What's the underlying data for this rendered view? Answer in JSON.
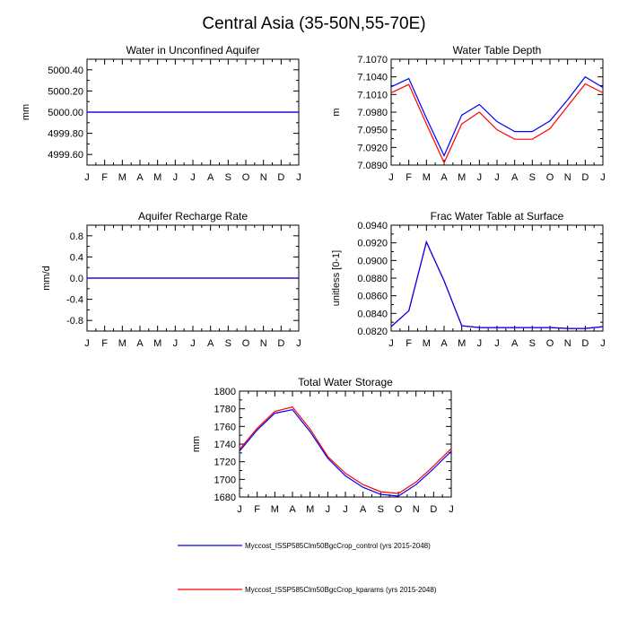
{
  "title": "Central Asia (35-50N,55-70E)",
  "colors": {
    "control": "#0000ff",
    "kparams": "#ff0000"
  },
  "legend": [
    {
      "label": "Myccost_ISSP585Clm50BgcCrop_control (yrs 2015-2048)",
      "color": "#0000ff"
    },
    {
      "label": "Myccost_ISSP585Clm50BgcCrop_kparams (yrs 2015-2048)",
      "color": "#ff0000"
    }
  ],
  "chart_data": [
    {
      "type": "line",
      "title": "Water in Unconfined Aquifer",
      "ylabel": "mm",
      "categories": [
        "J",
        "F",
        "M",
        "A",
        "M",
        "J",
        "J",
        "A",
        "S",
        "O",
        "N",
        "D",
        "J"
      ],
      "ylim": [
        4999.5,
        5000.5
      ],
      "yticks": [
        "5000.40",
        "5000.20",
        "5000.00",
        "4999.80",
        "4999.60"
      ],
      "series": [
        {
          "values": [
            5000,
            5000,
            5000,
            5000,
            5000,
            5000,
            5000,
            5000,
            5000,
            5000,
            5000,
            5000,
            5000
          ],
          "color": "#ff0000"
        },
        {
          "values": [
            5000,
            5000,
            5000,
            5000,
            5000,
            5000,
            5000,
            5000,
            5000,
            5000,
            5000,
            5000,
            5000
          ],
          "color": "#0000ff"
        }
      ]
    },
    {
      "type": "line",
      "title": "Water Table Depth",
      "ylabel": "m",
      "categories": [
        "J",
        "F",
        "M",
        "A",
        "M",
        "J",
        "J",
        "A",
        "S",
        "O",
        "N",
        "D",
        "J"
      ],
      "ylim": [
        7.089,
        7.107
      ],
      "yticks": [
        "7.1070",
        "7.1040",
        "7.1010",
        "7.0980",
        "7.0950",
        "7.0920",
        "7.0890"
      ],
      "series": [
        {
          "values": [
            7.1013,
            7.1027,
            7.096,
            7.0894,
            7.096,
            7.098,
            7.095,
            7.0934,
            7.0934,
            7.0952,
            7.099,
            7.1028,
            7.1013
          ],
          "color": "#ff0000"
        },
        {
          "values": [
            7.1023,
            7.1037,
            7.097,
            7.0906,
            7.0975,
            7.0993,
            7.0964,
            7.0947,
            7.0947,
            7.0965,
            7.1001,
            7.104,
            7.1022
          ],
          "color": "#0000ff"
        }
      ]
    },
    {
      "type": "line",
      "title": "Aquifer Recharge Rate",
      "ylabel": "mm/d",
      "categories": [
        "J",
        "F",
        "M",
        "A",
        "M",
        "J",
        "J",
        "A",
        "S",
        "O",
        "N",
        "D",
        "J"
      ],
      "ylim": [
        -1.0,
        1.0
      ],
      "yticks": [
        "0.8",
        "0.4",
        "0.0",
        "-0.4",
        "-0.8"
      ],
      "series": [
        {
          "values": [
            0,
            0,
            0,
            0,
            0,
            0,
            0,
            0,
            0,
            0,
            0,
            0,
            0
          ],
          "color": "#ff0000"
        },
        {
          "values": [
            0,
            0,
            0,
            0,
            0,
            0,
            0,
            0,
            0,
            0,
            0,
            0,
            0
          ],
          "color": "#0000ff"
        }
      ]
    },
    {
      "type": "line",
      "title": "Frac Water Table at Surface",
      "ylabel": "unitless [0-1]",
      "categories": [
        "J",
        "F",
        "M",
        "A",
        "M",
        "J",
        "J",
        "A",
        "S",
        "O",
        "N",
        "D",
        "J"
      ],
      "ylim": [
        0.082,
        0.094
      ],
      "yticks": [
        "0.0940",
        "0.0920",
        "0.0900",
        "0.0880",
        "0.0860",
        "0.0840",
        "0.0820"
      ],
      "series": [
        {
          "values": [
            0.0825,
            0.0843,
            0.0921,
            0.0877,
            0.0826,
            0.0824,
            0.0824,
            0.0824,
            0.0824,
            0.0824,
            0.0823,
            0.0823,
            0.0825
          ],
          "color": "#ff0000"
        },
        {
          "values": [
            0.0825,
            0.0843,
            0.0921,
            0.0877,
            0.0826,
            0.0824,
            0.0824,
            0.0824,
            0.0824,
            0.0824,
            0.0823,
            0.0823,
            0.0825
          ],
          "color": "#0000ff"
        }
      ]
    },
    {
      "type": "line",
      "title": "Total Water Storage",
      "ylabel": "mm",
      "categories": [
        "J",
        "F",
        "M",
        "A",
        "M",
        "J",
        "J",
        "A",
        "S",
        "O",
        "N",
        "D",
        "J"
      ],
      "ylim": [
        1680,
        1800
      ],
      "yticks": [
        "1800",
        "1780",
        "1760",
        "1740",
        "1720",
        "1700",
        "1680"
      ],
      "series": [
        {
          "values": [
            1734,
            1758,
            1777,
            1782,
            1757,
            1726,
            1707,
            1694,
            1686,
            1684,
            1697,
            1715,
            1735
          ],
          "color": "#ff0000"
        },
        {
          "values": [
            1732,
            1756,
            1775,
            1779,
            1754,
            1724,
            1704,
            1691,
            1683,
            1681,
            1694,
            1712,
            1732
          ],
          "color": "#0000ff"
        }
      ]
    }
  ]
}
